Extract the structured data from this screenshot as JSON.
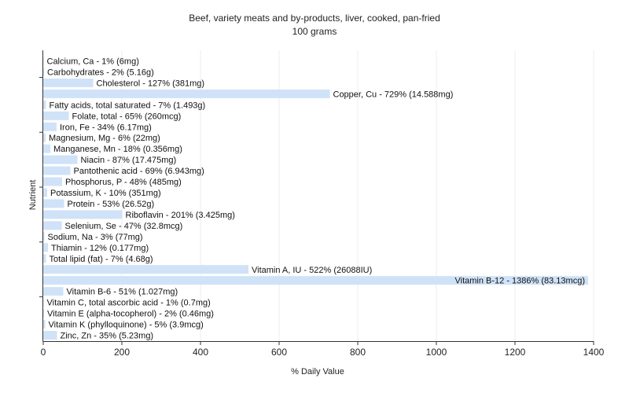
{
  "chart_data": {
    "type": "bar",
    "orientation": "horizontal",
    "title": "Beef, variety meats and by-products, liver, cooked, pan-fried",
    "subtitle": "100 grams",
    "xlabel": "% Daily Value",
    "ylabel": "Nutrient",
    "xlim": [
      0,
      1400
    ],
    "xticks": [
      0,
      200,
      400,
      600,
      800,
      1000,
      1200,
      1400
    ],
    "grid": true,
    "bar_color": "#cfe2f8",
    "categories": [
      "Calcium, Ca",
      "Carbohydrates",
      "Cholesterol",
      "Copper, Cu",
      "Fatty acids, total saturated",
      "Folate, total",
      "Iron, Fe",
      "Magnesium, Mg",
      "Manganese, Mn",
      "Niacin",
      "Pantothenic acid",
      "Phosphorus, P",
      "Potassium, K",
      "Protein",
      "Riboflavin",
      "Selenium, Se",
      "Sodium, Na",
      "Thiamin",
      "Total lipid (fat)",
      "Vitamin A, IU",
      "Vitamin B-12",
      "Vitamin B-6",
      "Vitamin C, total ascorbic acid",
      "Vitamin E (alpha-tocopherol)",
      "Vitamin K (phylloquinone)",
      "Zinc, Zn"
    ],
    "values": [
      1,
      2,
      127,
      729,
      7,
      65,
      34,
      6,
      18,
      87,
      69,
      48,
      10,
      53,
      201,
      47,
      3,
      12,
      7,
      522,
      1386,
      51,
      1,
      2,
      5,
      35
    ],
    "labels": [
      "Calcium, Ca - 1% (6mg)",
      "Carbohydrates - 2% (5.16g)",
      "Cholesterol - 127% (381mg)",
      "Copper, Cu - 729% (14.588mg)",
      "Fatty acids, total saturated - 7% (1.493g)",
      "Folate, total - 65% (260mcg)",
      "Iron, Fe - 34% (6.17mg)",
      "Magnesium, Mg - 6% (22mg)",
      "Manganese, Mn - 18% (0.356mg)",
      "Niacin - 87% (17.475mg)",
      "Pantothenic acid - 69% (6.943mg)",
      "Phosphorus, P - 48% (485mg)",
      "Potassium, K - 10% (351mg)",
      "Protein - 53% (26.52g)",
      "Riboflavin - 201% (3.425mg)",
      "Selenium, Se - 47% (32.8mcg)",
      "Sodium, Na - 3% (77mg)",
      "Thiamin - 12% (0.177mg)",
      "Total lipid (fat) - 7% (4.68g)",
      "Vitamin A, IU - 522% (26088IU)",
      "Vitamin B-12 - 1386% (83.13mcg)",
      "Vitamin B-6 - 51% (1.027mg)",
      "Vitamin C, total ascorbic acid - 1% (0.7mg)",
      "Vitamin E (alpha-tocopherol) - 2% (0.46mg)",
      "Vitamin K (phylloquinone) - 5% (3.9mcg)",
      "Zinc, Zn - 35% (5.23mg)"
    ]
  }
}
